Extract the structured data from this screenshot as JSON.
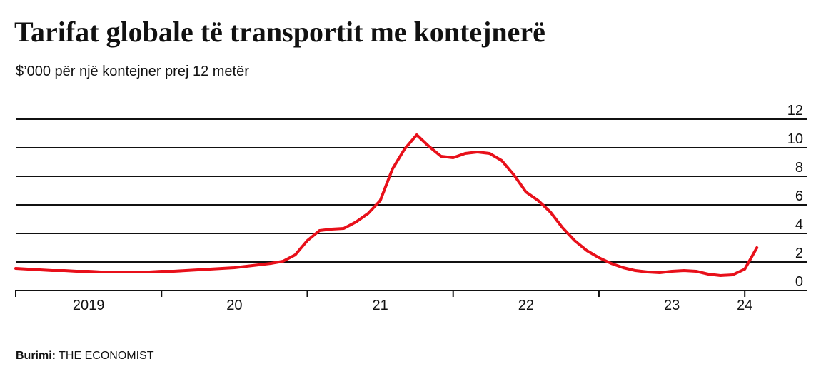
{
  "chart_data": {
    "type": "line",
    "title": "Tarifat globale të transportit me kontejnerë",
    "subtitle": "$’000 për një kontejner prej 12 metër",
    "source_label": "Burimi:",
    "source": "THE ECONOMIST",
    "categories": [
      null,
      null,
      null,
      null,
      null,
      null,
      "2019",
      null,
      null,
      null,
      null,
      null,
      null,
      null,
      null,
      null,
      null,
      null,
      "20",
      null,
      null,
      null,
      null,
      null,
      null,
      null,
      null,
      null,
      null,
      null,
      "21",
      null,
      null,
      null,
      null,
      null,
      null,
      null,
      null,
      null,
      null,
      null,
      "22",
      null,
      null,
      null,
      null,
      null,
      null,
      null,
      null,
      null,
      null,
      null,
      "23",
      null,
      null,
      null,
      null,
      null,
      "24",
      null
    ],
    "values": [
      1.55,
      1.5,
      1.45,
      1.4,
      1.4,
      1.35,
      1.35,
      1.3,
      1.3,
      1.3,
      1.3,
      1.3,
      1.35,
      1.35,
      1.4,
      1.45,
      1.5,
      1.55,
      1.6,
      1.7,
      1.8,
      1.9,
      2.05,
      2.5,
      3.5,
      4.2,
      4.3,
      4.35,
      4.8,
      5.4,
      6.3,
      8.5,
      9.9,
      10.9,
      10.1,
      9.4,
      9.3,
      9.6,
      9.7,
      9.6,
      9.1,
      8.1,
      6.9,
      6.3,
      5.5,
      4.4,
      3.5,
      2.8,
      2.3,
      1.9,
      1.6,
      1.4,
      1.3,
      1.25,
      1.35,
      1.4,
      1.35,
      1.15,
      1.05,
      1.1,
      1.5,
      3.0
    ],
    "color": "#e8101a",
    "ylim": [
      0,
      12
    ],
    "yticks": [
      0,
      2,
      4,
      6,
      8,
      10,
      12
    ],
    "grid": true
  }
}
